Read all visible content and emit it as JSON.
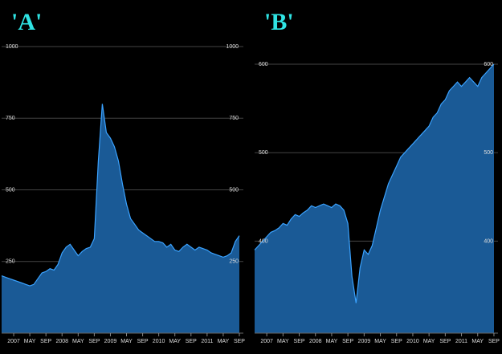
{
  "chart_data": [
    {
      "type": "area",
      "title": "'A'",
      "x": [
        "2006-10",
        "2006-11",
        "2006-12",
        "2007-01",
        "2007-02",
        "2007-03",
        "2007-04",
        "2007-05",
        "2007-06",
        "2007-07",
        "2007-08",
        "2007-09",
        "2007-10",
        "2007-11",
        "2007-12",
        "2008-01",
        "2008-02",
        "2008-03",
        "2008-04",
        "2008-05",
        "2008-06",
        "2008-07",
        "2008-08",
        "2008-09",
        "2008-10",
        "2008-11",
        "2008-12",
        "2009-01",
        "2009-02",
        "2009-03",
        "2009-04",
        "2009-05",
        "2009-06",
        "2009-07",
        "2009-08",
        "2009-09",
        "2009-10",
        "2009-11",
        "2009-12",
        "2010-01",
        "2010-02",
        "2010-03",
        "2010-04",
        "2010-05",
        "2010-06",
        "2010-07",
        "2010-08",
        "2010-09",
        "2010-10",
        "2010-11",
        "2010-12",
        "2011-01",
        "2011-02",
        "2011-03",
        "2011-04",
        "2011-05",
        "2011-06",
        "2011-07",
        "2011-08",
        "2011-09"
      ],
      "values": [
        200,
        195,
        190,
        185,
        180,
        175,
        170,
        165,
        170,
        190,
        210,
        215,
        225,
        220,
        240,
        280,
        300,
        310,
        290,
        270,
        285,
        295,
        300,
        330,
        600,
        800,
        700,
        680,
        650,
        600,
        520,
        450,
        400,
        380,
        360,
        350,
        340,
        330,
        320,
        320,
        315,
        300,
        310,
        290,
        285,
        300,
        310,
        300,
        290,
        300,
        295,
        290,
        280,
        275,
        270,
        265,
        270,
        280,
        320,
        340
      ],
      "color": "#1a5a96",
      "xlim": [
        "2006-10",
        "2011-10"
      ],
      "xticks": [
        {
          "value": "2007-01",
          "label": "2007"
        },
        {
          "value": "2007-05",
          "label": "MAY"
        },
        {
          "value": "2007-09",
          "label": "SEP"
        },
        {
          "value": "2008-01",
          "label": "2008"
        },
        {
          "value": "2008-05",
          "label": "MAY"
        },
        {
          "value": "2008-09",
          "label": "SEP"
        },
        {
          "value": "2009-01",
          "label": "2009"
        },
        {
          "value": "2009-05",
          "label": "MAY"
        },
        {
          "value": "2009-09",
          "label": "SEP"
        },
        {
          "value": "2010-01",
          "label": "2010"
        },
        {
          "value": "2010-05",
          "label": "MAY"
        },
        {
          "value": "2010-09",
          "label": "SEP"
        },
        {
          "value": "2011-01",
          "label": "2011"
        },
        {
          "value": "2011-05",
          "label": "MAY"
        },
        {
          "value": "2011-09",
          "label": "SEP"
        }
      ],
      "ylim": [
        0,
        1000
      ],
      "yticks": [
        250,
        500,
        750,
        1000
      ],
      "grid": true
    },
    {
      "type": "area",
      "title": "'B'",
      "x": [
        "2006-10",
        "2006-11",
        "2006-12",
        "2007-01",
        "2007-02",
        "2007-03",
        "2007-04",
        "2007-05",
        "2007-06",
        "2007-07",
        "2007-08",
        "2007-09",
        "2007-10",
        "2007-11",
        "2007-12",
        "2008-01",
        "2008-02",
        "2008-03",
        "2008-04",
        "2008-05",
        "2008-06",
        "2008-07",
        "2008-08",
        "2008-09",
        "2008-10",
        "2008-11",
        "2008-12",
        "2009-01",
        "2009-02",
        "2009-03",
        "2009-04",
        "2009-05",
        "2009-06",
        "2009-07",
        "2009-08",
        "2009-09",
        "2009-10",
        "2009-11",
        "2009-12",
        "2010-01",
        "2010-02",
        "2010-03",
        "2010-04",
        "2010-05",
        "2010-06",
        "2010-07",
        "2010-08",
        "2010-09",
        "2010-10",
        "2010-11",
        "2010-12",
        "2011-01",
        "2011-02",
        "2011-03",
        "2011-04",
        "2011-05",
        "2011-06",
        "2011-07",
        "2011-08",
        "2011-09"
      ],
      "values": [
        390,
        395,
        400,
        405,
        410,
        412,
        415,
        420,
        418,
        425,
        430,
        428,
        432,
        435,
        440,
        438,
        440,
        442,
        440,
        438,
        442,
        440,
        435,
        420,
        360,
        330,
        370,
        390,
        385,
        395,
        415,
        435,
        450,
        465,
        475,
        485,
        495,
        500,
        505,
        510,
        515,
        520,
        525,
        530,
        540,
        545,
        555,
        560,
        570,
        575,
        580,
        575,
        580,
        585,
        580,
        575,
        585,
        590,
        595,
        600
      ],
      "color": "#1a5a96",
      "xlim": [
        "2006-10",
        "2011-10"
      ],
      "xticks": [
        {
          "value": "2007-01",
          "label": "2007"
        },
        {
          "value": "2007-05",
          "label": "MAY"
        },
        {
          "value": "2007-09",
          "label": "SEP"
        },
        {
          "value": "2008-01",
          "label": "2008"
        },
        {
          "value": "2008-05",
          "label": "MAY"
        },
        {
          "value": "2008-09",
          "label": "SEP"
        },
        {
          "value": "2009-01",
          "label": "2009"
        },
        {
          "value": "2009-05",
          "label": "MAY"
        },
        {
          "value": "2009-09",
          "label": "SEP"
        },
        {
          "value": "2010-01",
          "label": "2010"
        },
        {
          "value": "2010-05",
          "label": "MAY"
        },
        {
          "value": "2010-09",
          "label": "SEP"
        },
        {
          "value": "2011-01",
          "label": "2011"
        },
        {
          "value": "2011-05",
          "label": "MAY"
        },
        {
          "value": "2011-09",
          "label": "SEP"
        }
      ],
      "ylim": [
        296,
        620
      ],
      "yticks": [
        400,
        500,
        600
      ],
      "grid": true
    }
  ]
}
